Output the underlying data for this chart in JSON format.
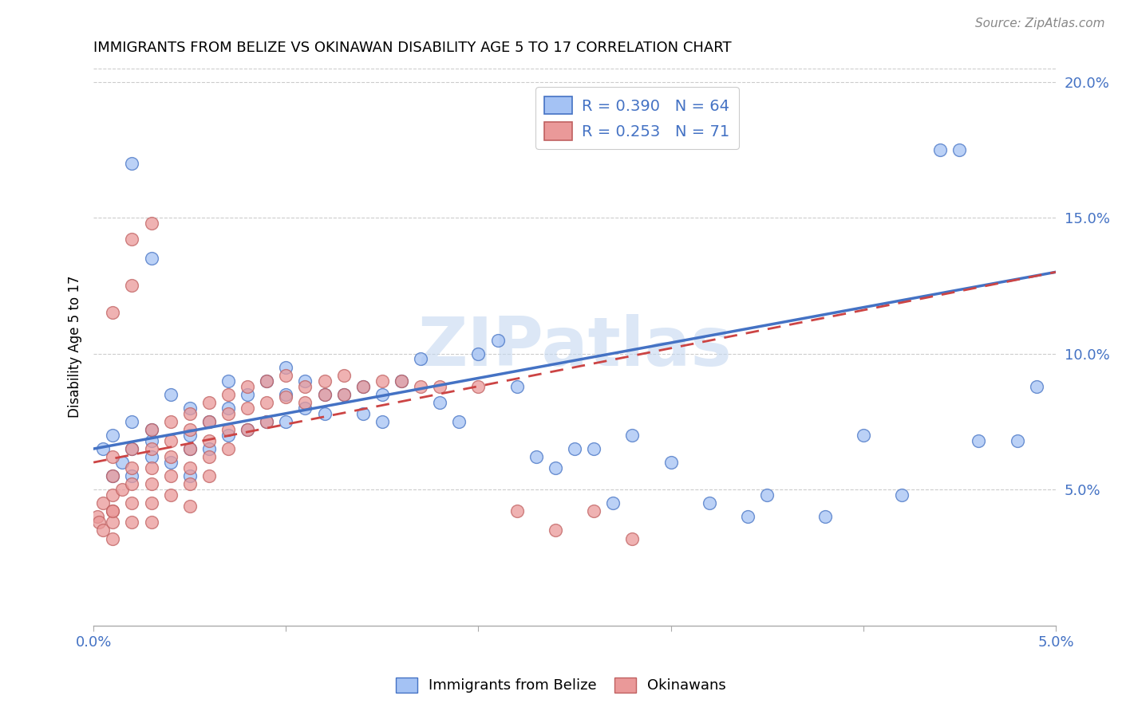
{
  "title": "IMMIGRANTS FROM BELIZE VS OKINAWAN DISABILITY AGE 5 TO 17 CORRELATION CHART",
  "source_text": "Source: ZipAtlas.com",
  "ylabel": "Disability Age 5 to 17",
  "x_min": 0.0,
  "x_max": 0.05,
  "y_min": 0.0,
  "y_max": 0.205,
  "x_ticks": [
    0.0,
    0.01,
    0.02,
    0.03,
    0.04,
    0.05
  ],
  "x_tick_labels": [
    "0.0%",
    "",
    "",
    "",
    "",
    "5.0%"
  ],
  "y_ticks_right": [
    0.05,
    0.1,
    0.15,
    0.2
  ],
  "y_tick_labels_right": [
    "5.0%",
    "10.0%",
    "15.0%",
    "20.0%"
  ],
  "blue_color": "#a4c2f4",
  "pink_color": "#ea9999",
  "line_blue": "#4472c4",
  "line_pink": "#cc4444",
  "R_blue": 0.39,
  "N_blue": 64,
  "R_pink": 0.253,
  "N_pink": 71,
  "watermark": "ZIPatlas",
  "legend_label_blue": "Immigrants from Belize",
  "legend_label_pink": "Okinawans",
  "blue_scatter_x": [
    0.0005,
    0.001,
    0.001,
    0.0015,
    0.002,
    0.002,
    0.002,
    0.003,
    0.003,
    0.003,
    0.004,
    0.004,
    0.005,
    0.005,
    0.005,
    0.005,
    0.006,
    0.006,
    0.007,
    0.007,
    0.007,
    0.008,
    0.008,
    0.009,
    0.009,
    0.01,
    0.01,
    0.01,
    0.011,
    0.011,
    0.012,
    0.012,
    0.013,
    0.014,
    0.014,
    0.015,
    0.015,
    0.016,
    0.017,
    0.018,
    0.019,
    0.02,
    0.021,
    0.022,
    0.023,
    0.024,
    0.025,
    0.026,
    0.027,
    0.028,
    0.03,
    0.032,
    0.034,
    0.035,
    0.038,
    0.04,
    0.042,
    0.044,
    0.046,
    0.048,
    0.049,
    0.045,
    0.002,
    0.003
  ],
  "blue_scatter_y": [
    0.065,
    0.055,
    0.07,
    0.06,
    0.075,
    0.065,
    0.055,
    0.068,
    0.062,
    0.072,
    0.085,
    0.06,
    0.07,
    0.08,
    0.065,
    0.055,
    0.075,
    0.065,
    0.09,
    0.08,
    0.07,
    0.085,
    0.072,
    0.09,
    0.075,
    0.095,
    0.085,
    0.075,
    0.09,
    0.08,
    0.085,
    0.078,
    0.085,
    0.088,
    0.078,
    0.085,
    0.075,
    0.09,
    0.098,
    0.082,
    0.075,
    0.1,
    0.105,
    0.088,
    0.062,
    0.058,
    0.065,
    0.065,
    0.045,
    0.07,
    0.06,
    0.045,
    0.04,
    0.048,
    0.04,
    0.07,
    0.048,
    0.175,
    0.068,
    0.068,
    0.088,
    0.175,
    0.17,
    0.135
  ],
  "pink_scatter_x": [
    0.0002,
    0.0003,
    0.0005,
    0.0005,
    0.001,
    0.001,
    0.001,
    0.001,
    0.001,
    0.0015,
    0.002,
    0.002,
    0.002,
    0.002,
    0.002,
    0.003,
    0.003,
    0.003,
    0.003,
    0.003,
    0.003,
    0.004,
    0.004,
    0.004,
    0.004,
    0.004,
    0.005,
    0.005,
    0.005,
    0.005,
    0.005,
    0.005,
    0.006,
    0.006,
    0.006,
    0.006,
    0.006,
    0.007,
    0.007,
    0.007,
    0.007,
    0.008,
    0.008,
    0.008,
    0.009,
    0.009,
    0.009,
    0.01,
    0.01,
    0.011,
    0.011,
    0.012,
    0.012,
    0.013,
    0.013,
    0.014,
    0.015,
    0.016,
    0.017,
    0.018,
    0.02,
    0.022,
    0.024,
    0.026,
    0.028,
    0.003,
    0.002,
    0.002,
    0.001,
    0.001,
    0.001
  ],
  "pink_scatter_y": [
    0.04,
    0.038,
    0.045,
    0.035,
    0.055,
    0.048,
    0.042,
    0.038,
    0.032,
    0.05,
    0.065,
    0.058,
    0.052,
    0.045,
    0.038,
    0.072,
    0.065,
    0.058,
    0.052,
    0.045,
    0.038,
    0.075,
    0.068,
    0.062,
    0.055,
    0.048,
    0.078,
    0.072,
    0.065,
    0.058,
    0.052,
    0.044,
    0.082,
    0.075,
    0.068,
    0.062,
    0.055,
    0.085,
    0.078,
    0.072,
    0.065,
    0.088,
    0.08,
    0.072,
    0.09,
    0.082,
    0.075,
    0.092,
    0.084,
    0.088,
    0.082,
    0.09,
    0.085,
    0.092,
    0.085,
    0.088,
    0.09,
    0.09,
    0.088,
    0.088,
    0.088,
    0.042,
    0.035,
    0.042,
    0.032,
    0.148,
    0.142,
    0.125,
    0.115,
    0.062,
    0.042
  ]
}
